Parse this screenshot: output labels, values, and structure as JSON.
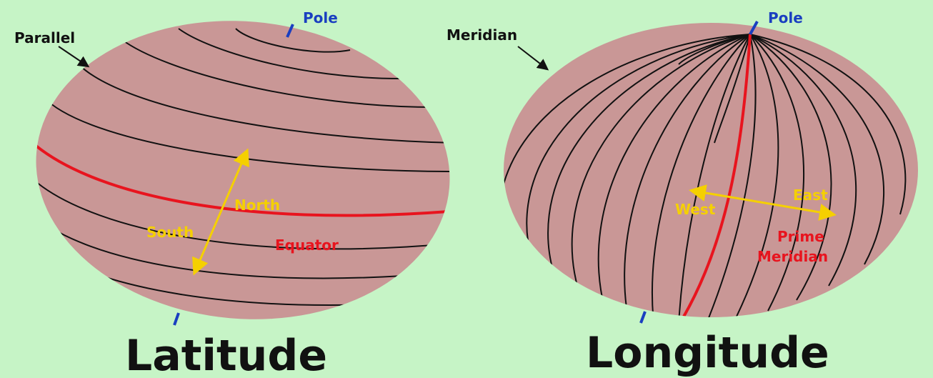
{
  "latitude": {
    "title": "Latitude",
    "pole": "Pole",
    "line_name": "Parallel",
    "north": "North",
    "south": "South",
    "reference_line": "Equator"
  },
  "longitude": {
    "title": "Longitude",
    "pole": "Pole",
    "line_name": "Meridian",
    "west": "West",
    "east": "East",
    "reference_line": [
      "Prime",
      "Meridian"
    ]
  }
}
